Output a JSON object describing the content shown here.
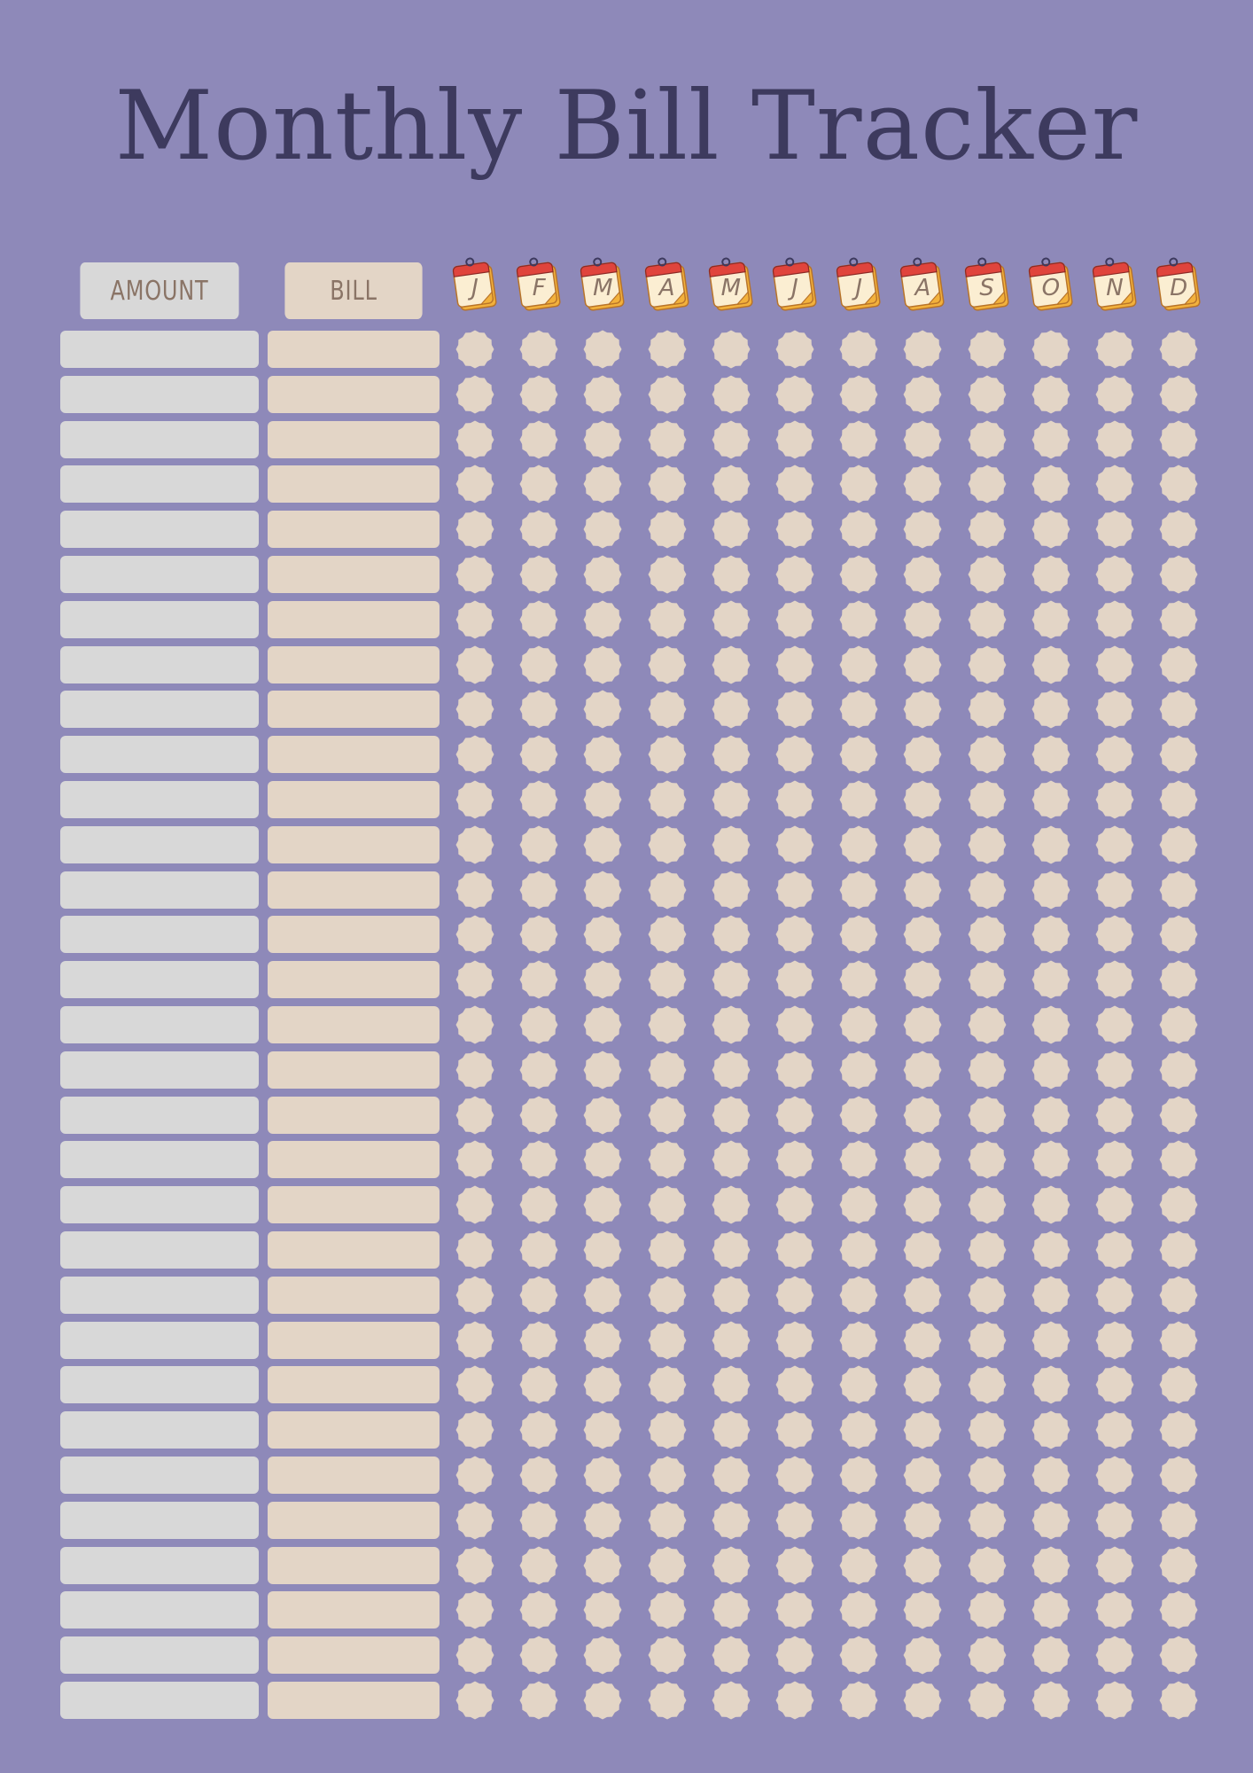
{
  "title": "Monthly Bill Tracker",
  "headers": {
    "amount": "AMOUNT",
    "bill": "BILL"
  },
  "months": [
    "J",
    "F",
    "M",
    "A",
    "M",
    "J",
    "J",
    "A",
    "S",
    "O",
    "N",
    "D"
  ],
  "row_count": 31,
  "colors": {
    "background": "#8e89b9",
    "title": "#3d3a5e",
    "amount_box": "#d8d8d8",
    "bill_box": "#e3d5c6",
    "checkbox": "#e3d5c6",
    "calendar_top": "#e0443c",
    "calendar_page": "#fbeed2",
    "calendar_back": "#f2b13c"
  },
  "icons": {
    "month": "calendar-page-icon",
    "check": "scalloped-circle-checkbox"
  }
}
